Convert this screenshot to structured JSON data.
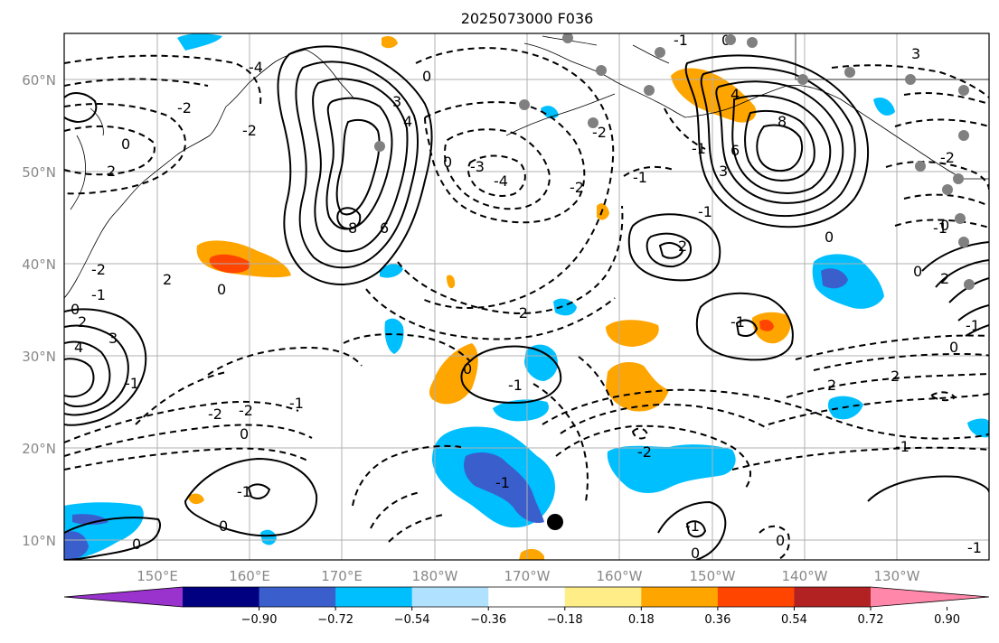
{
  "title": "2025073000 F036",
  "lon_ticks": [
    "150°E",
    "160°E",
    "170°E",
    "180°W",
    "170°W",
    "160°W",
    "150°W",
    "140°W",
    "130°W"
  ],
  "lat_ticks": [
    "60°N",
    "50°N",
    "40°N",
    "30°N",
    "20°N",
    "10°N"
  ],
  "colorbar": {
    "colors": [
      "#9a32cd",
      "#000080",
      "#3a5fcd",
      "#00bfff",
      "#b0e2ff",
      "#ffffff",
      "#ffee88",
      "#ffa500",
      "#ff4500",
      "#b22222",
      "#ff88aa"
    ],
    "tick_labels": [
      "−0.90",
      "−0.72",
      "−0.54",
      "−0.36",
      "−0.18",
      "0.18",
      "0.36",
      "0.54",
      "0.72",
      "0.90"
    ]
  },
  "contour_labels": [
    "0",
    "2",
    "3",
    "4",
    "6",
    "8",
    "-1",
    "-2",
    "-3",
    "-4"
  ],
  "colors": {
    "orange": "#ffa500",
    "red_orange": "#ff4500",
    "light_blue": "#00bfff",
    "blue": "#3a5fcd",
    "gray_marker": "#808080",
    "black_marker": "#000000"
  }
}
